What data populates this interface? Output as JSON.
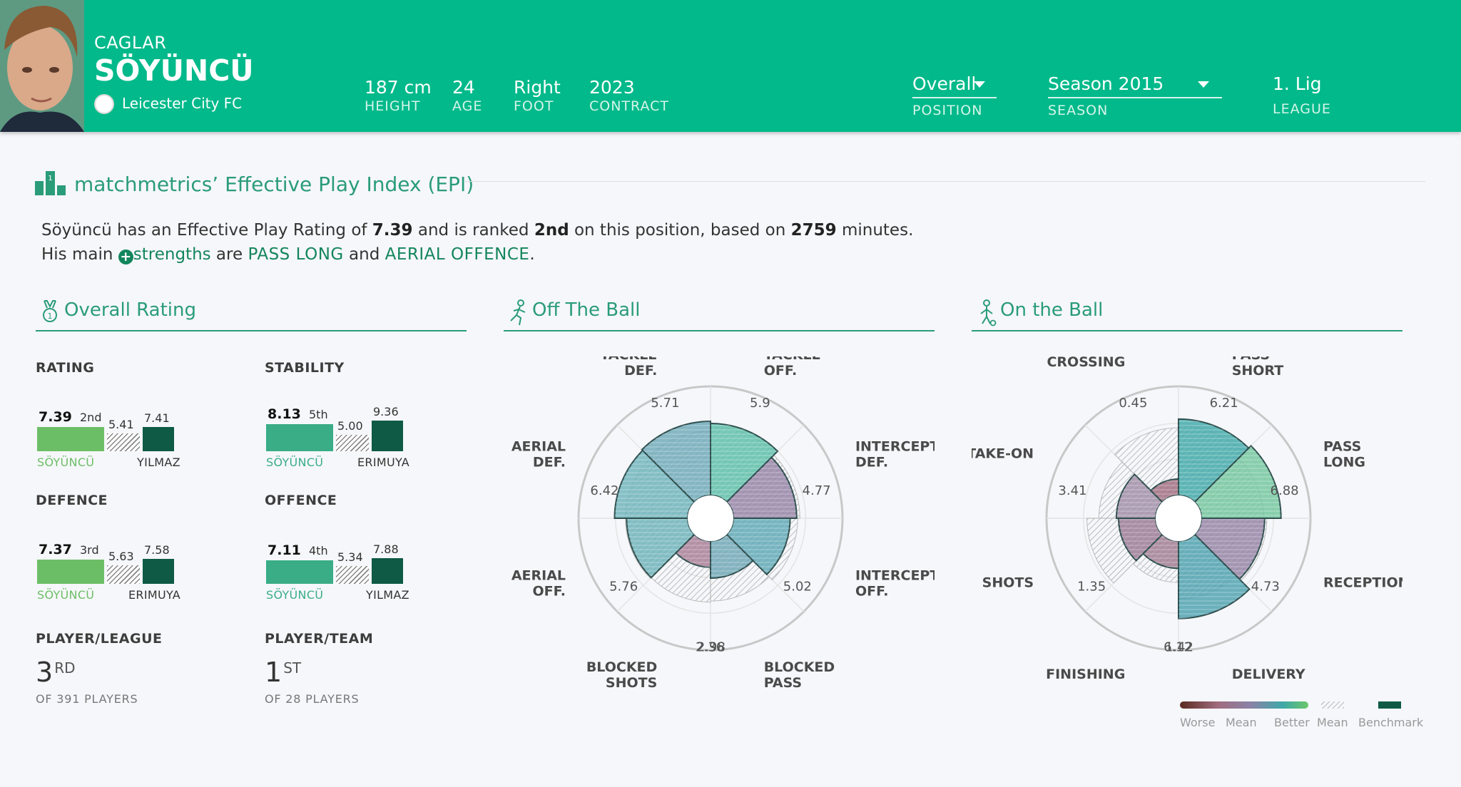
{
  "player": {
    "first_name": "CAGLAR",
    "last_name": "SÖYÜNCÜ",
    "club": "Leicester City FC"
  },
  "stats": [
    {
      "value": "187 cm",
      "label": "HEIGHT"
    },
    {
      "value": "24",
      "label": "AGE"
    },
    {
      "value": "Right",
      "label": "FOOT"
    },
    {
      "value": "2023",
      "label": "CONTRACT"
    }
  ],
  "filters": {
    "position": {
      "value": "Overall",
      "label": "POSITION"
    },
    "season": {
      "value": "Season 2015",
      "label": "SEASON"
    },
    "league": {
      "value": "1. Lig",
      "label": "LEAGUE"
    }
  },
  "epi": {
    "title": "matchmetrics’ Effective Play Index (EPI)",
    "line1": {
      "a": "Söyüncü has an Effective Play Rating of ",
      "rating": "7.39",
      "b": " and is ranked ",
      "rank": "2nd",
      "c": " on this position, based on ",
      "minutes": "2759",
      "d": " minutes."
    },
    "line2": {
      "a": "His main ",
      "strengths": "strengths",
      "b": " are ",
      "s1": "PASS LONG",
      "c": " and ",
      "s2": "AERIAL OFFENCE",
      "d": "."
    }
  },
  "sections": {
    "overall": "Overall Rating",
    "off": "Off The Ball",
    "on": "On the Ball"
  },
  "cards": [
    {
      "label": "RATING",
      "main": "7.39",
      "rank": "2nd",
      "mean": "5.41",
      "bench": "7.41",
      "player": "SÖYÜNCÜ",
      "rival": "YILMAZ",
      "color": "#6cbe66",
      "main_v": 7.39,
      "mean_v": 5.41,
      "bench_v": 7.41
    },
    {
      "label": "STABILITY",
      "main": "8.13",
      "rank": "5th",
      "mean": "5.00",
      "bench": "9.36",
      "player": "SÖYÜNCÜ",
      "rival": "ERIMUYA",
      "color": "#3aad86",
      "main_v": 8.13,
      "mean_v": 5.0,
      "bench_v": 9.36
    },
    {
      "label": "DEFENCE",
      "main": "7.37",
      "rank": "3rd",
      "mean": "5.63",
      "bench": "7.58",
      "player": "SÖYÜNCÜ",
      "rival": "ERIMUYA",
      "color": "#6cbe66",
      "main_v": 7.37,
      "mean_v": 5.63,
      "bench_v": 7.58
    },
    {
      "label": "OFFENCE",
      "main": "7.11",
      "rank": "4th",
      "mean": "5.34",
      "bench": "7.88",
      "player": "SÖYÜNCÜ",
      "rival": "YILMAZ",
      "color": "#3aad86",
      "main_v": 7.11,
      "mean_v": 5.34,
      "bench_v": 7.88
    }
  ],
  "rankings": [
    {
      "label": "PLAYER/LEAGUE",
      "num": "3",
      "sup": "RD",
      "sub": "OF 391 PLAYERS"
    },
    {
      "label": "PLAYER/TEAM",
      "num": "1",
      "sup": "ST",
      "sub": "OF 28 PLAYERS"
    }
  ],
  "radar_off": {
    "labels": [
      [
        "TACKLE",
        "OFF."
      ],
      [
        "INTERCEPT",
        "DEF."
      ],
      [
        "INTERCEPT",
        "OFF."
      ],
      [
        "BLOCKED",
        "PASS"
      ],
      [
        "BLOCKED",
        "SHOTS"
      ],
      [
        "AERIAL",
        "OFF."
      ],
      [
        "AERIAL",
        "DEF."
      ],
      [
        "TACKLE",
        "DEF."
      ]
    ],
    "values": [
      "5.9",
      "4.77",
      "5.02",
      "2.36",
      "2.98",
      "5.76",
      "6.42",
      "5.71"
    ],
    "player": [
      6.6,
      5.8,
      5.2,
      3.4,
      2.4,
      5.6,
      6.7,
      6.8
    ],
    "mean": [
      6.3,
      6.1,
      5.9,
      5.5,
      5.6,
      5.7,
      5.7,
      5.9
    ],
    "colors": [
      "#5cc0a8",
      "#9582a6",
      "#5ea8b6",
      "#6ea7b6",
      "#a87e96",
      "#6cb3bb",
      "#6cb3bb",
      "#6ea9b8"
    ]
  },
  "radar_on": {
    "labels": [
      [
        "PASS",
        "SHORT"
      ],
      [
        "PASS",
        "LONG"
      ],
      [
        "RECEPTION",
        ""
      ],
      [
        "DELIVERY",
        ""
      ],
      [
        "FINISHING",
        ""
      ],
      [
        "SHOTS",
        ""
      ],
      [
        "TAKE-ON",
        ""
      ],
      [
        "CROSSING",
        ""
      ]
    ],
    "values": [
      "6.21",
      "6.88",
      "4.73",
      "6.12",
      "1.42",
      "1.35",
      "3.41",
      "0.45"
    ],
    "player": [
      7.0,
      7.3,
      5.8,
      7.1,
      2.5,
      3.4,
      3.6,
      1.5
    ],
    "mean": [
      6.4,
      5.7,
      6.0,
      5.3,
      3.8,
      6.3,
      5.2,
      6.2
    ],
    "colors": [
      "#3fa8a8",
      "#71c69e",
      "#9582a6",
      "#4ca1ae",
      "#a07c92",
      "#9b7a95",
      "#a18ea8",
      "#a06d80"
    ]
  },
  "legend": {
    "worse": "Worse",
    "mean": "Mean",
    "better": "Better",
    "mean2": "Mean",
    "bench": "Benchmark"
  }
}
